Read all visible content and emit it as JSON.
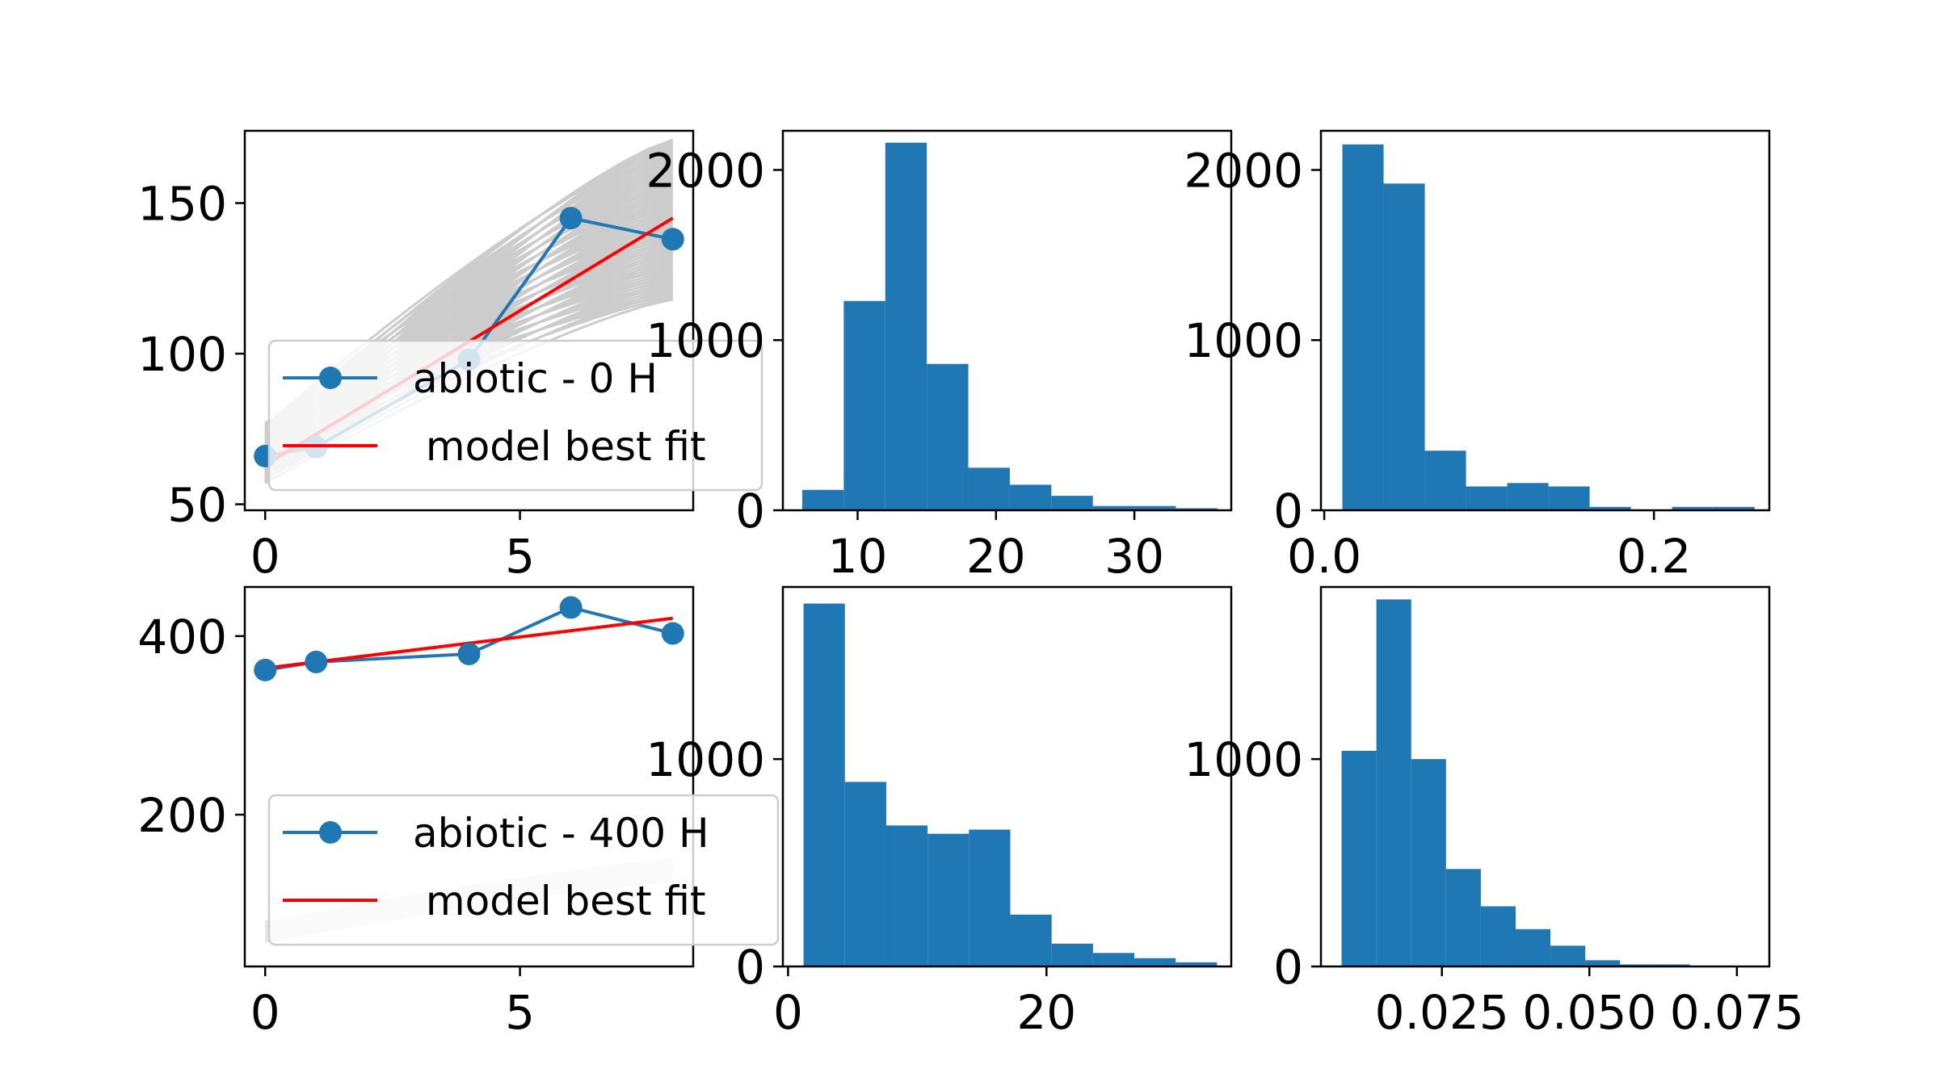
{
  "chart_data": [
    {
      "type": "line",
      "xlim": [
        -0.4,
        8.4
      ],
      "ylim": [
        48,
        174
      ],
      "xticks": [
        0,
        5
      ],
      "yticks": [
        50,
        100,
        150
      ],
      "grid": false,
      "legend_position": "lower-left",
      "series": [
        {
          "name": "abiotic - 0 H",
          "x": [
            0,
            1,
            4,
            6,
            8
          ],
          "y": [
            66,
            69,
            98,
            145,
            138
          ],
          "color": "#1f77b4",
          "marker": "circle"
        },
        {
          "name": " model best fit",
          "x": [
            0,
            8
          ],
          "y": [
            63,
            145
          ],
          "color": "#ff0000"
        }
      ],
      "ensemble": {
        "color": "#cccccc",
        "x_end": 8,
        "y_start_range": [
          57,
          77
        ],
        "y_end_range": [
          118,
          171
        ]
      }
    },
    {
      "type": "bar",
      "subtype": "histogram",
      "xlim": [
        4.6,
        37.0
      ],
      "ylim": [
        0,
        2230
      ],
      "xticks": [
        10,
        20,
        30
      ],
      "yticks": [
        0,
        1000,
        2000
      ],
      "color": "#1f77b4",
      "bin_edges": [
        6,
        9,
        12,
        15,
        18,
        21,
        24,
        27,
        30,
        33,
        36
      ],
      "values": [
        120,
        1230,
        2160,
        860,
        250,
        150,
        85,
        25,
        25,
        12
      ]
    },
    {
      "type": "bar",
      "subtype": "histogram",
      "xlim": [
        -0.002,
        0.27
      ],
      "ylim": [
        0,
        2230
      ],
      "xticks": [
        0.0,
        0.2
      ],
      "xticklabels": [
        "0.0",
        "0.2"
      ],
      "yticks": [
        0,
        1000,
        2000
      ],
      "color": "#1f77b4",
      "bin_edges": [
        0.011,
        0.036,
        0.061,
        0.086,
        0.111,
        0.136,
        0.161,
        0.186,
        0.211,
        0.236,
        0.261
      ],
      "values": [
        2150,
        1920,
        350,
        140,
        160,
        140,
        20,
        0,
        20,
        20
      ]
    },
    {
      "type": "line",
      "xlim": [
        -0.4,
        8.4
      ],
      "ylim": [
        30,
        455
      ],
      "xticks": [
        0,
        5
      ],
      "yticks": [
        200,
        400
      ],
      "grid": false,
      "legend_position": "lower-left",
      "series": [
        {
          "name": "abiotic - 400 H",
          "x": [
            0,
            1,
            4,
            6,
            8
          ],
          "y": [
            362,
            371,
            380,
            432,
            403
          ],
          "color": "#1f77b4",
          "marker": "circle"
        },
        {
          "name": " model best fit",
          "x": [
            0,
            8
          ],
          "y": [
            364,
            420
          ],
          "color": "#ff0000"
        }
      ],
      "ensemble": {
        "color": "#e6e6e6",
        "x_end": 8,
        "y_start_range": [
          58,
          80
        ],
        "y_end_range": [
          125,
          150
        ]
      }
    },
    {
      "type": "bar",
      "subtype": "histogram",
      "xlim": [
        -0.4,
        34.3
      ],
      "ylim": [
        0,
        1830
      ],
      "xticks": [
        0,
        20
      ],
      "yticks": [
        0,
        1000
      ],
      "color": "#1f77b4",
      "bin_edges": [
        1.2,
        4.4,
        7.6,
        10.8,
        14.0,
        17.2,
        20.4,
        23.6,
        26.8,
        30.0,
        33.2
      ],
      "values": [
        1750,
        890,
        680,
        640,
        660,
        250,
        110,
        65,
        40,
        20
      ]
    },
    {
      "type": "bar",
      "subtype": "histogram",
      "xlim": [
        0.0045,
        0.0805
      ],
      "ylim": [
        0,
        1830
      ],
      "xticks": [
        0.025,
        0.05,
        0.075
      ],
      "xticklabels": [
        "0.025",
        "0.050",
        "0.075"
      ],
      "yticks": [
        0,
        1000
      ],
      "color": "#1f77b4",
      "bin_edges": [
        0.008,
        0.0139,
        0.0198,
        0.0257,
        0.0316,
        0.0375,
        0.0434,
        0.0493,
        0.0552,
        0.0611,
        0.067
      ],
      "values": [
        1040,
        1770,
        1000,
        470,
        290,
        180,
        100,
        30,
        10,
        10
      ]
    }
  ]
}
